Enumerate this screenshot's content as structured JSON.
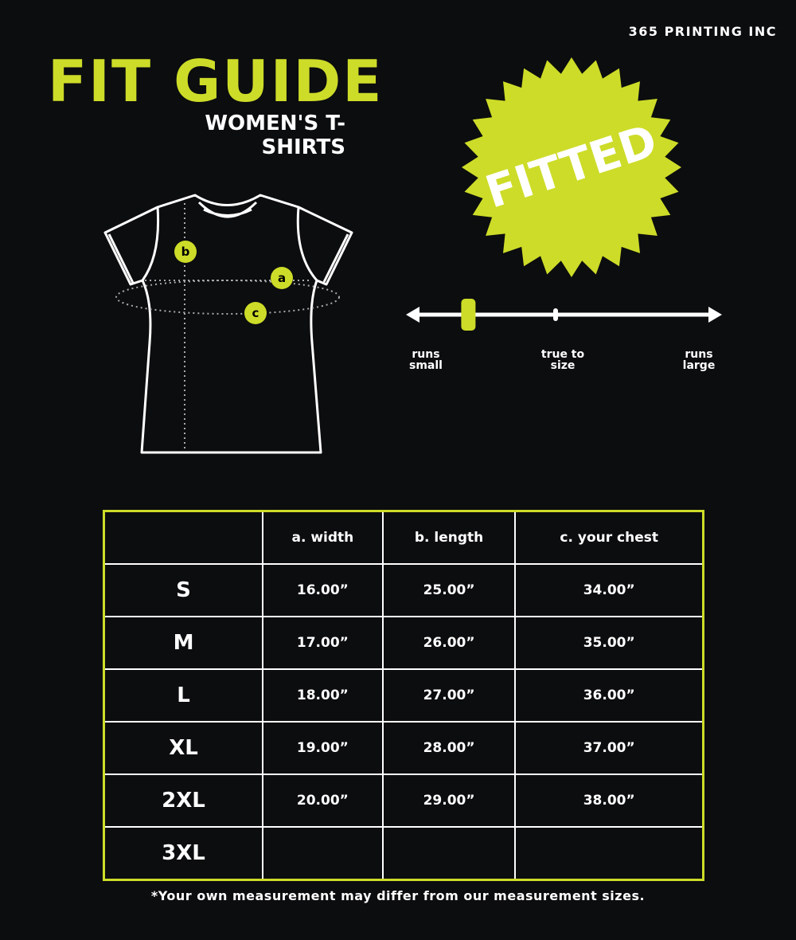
{
  "brand": "365 PRINTING INC",
  "title": "FIT GUIDE",
  "subtitle": "WOMEN'S T-SHIRTS",
  "badge": "FITTED",
  "colors": {
    "accent": "#cddc28",
    "background": "#0c0d0f"
  },
  "diagram_labels": {
    "a": "a",
    "b": "b",
    "c": "c"
  },
  "fit_scale": {
    "left": "runs small",
    "middle": "true to size",
    "right": "runs large",
    "marker_position_percent": 18
  },
  "table": {
    "headers": [
      "",
      "a. width",
      "b. length",
      "c. your chest"
    ],
    "rows": [
      [
        "S",
        "16.00”",
        "25.00”",
        "34.00”"
      ],
      [
        "M",
        "17.00”",
        "26.00”",
        "35.00”"
      ],
      [
        "L",
        "18.00”",
        "27.00”",
        "36.00”"
      ],
      [
        "XL",
        "19.00”",
        "28.00”",
        "37.00”"
      ],
      [
        "2XL",
        "20.00”",
        "29.00”",
        "38.00”"
      ],
      [
        "3XL",
        "",
        "",
        ""
      ]
    ]
  },
  "footnote": "*Your own measurement may differ from our measurement sizes."
}
